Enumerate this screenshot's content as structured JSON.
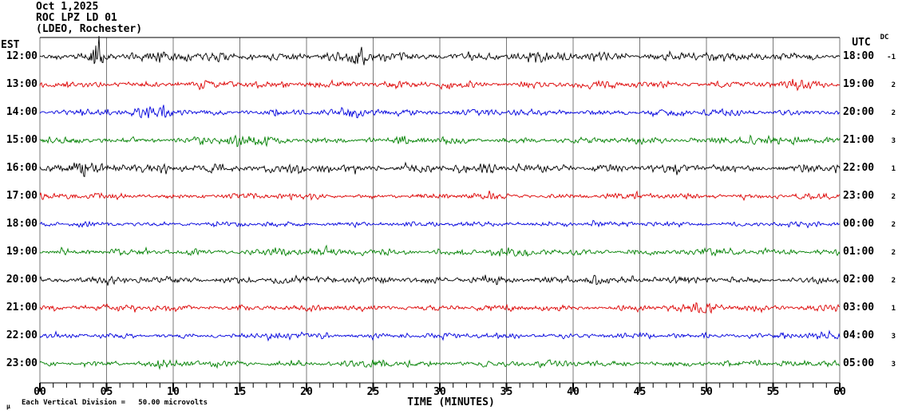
{
  "header": {
    "date": "Oct 1,2025",
    "station": "ROC LPZ LD 01",
    "location": "(LDEO, Rochester)"
  },
  "left_axis": {
    "label": "EST"
  },
  "right_axis": {
    "label": "UTC",
    "dc_label": "DC"
  },
  "x_axis": {
    "label": "TIME (MINUTES)"
  },
  "footer": {
    "mu": "µ",
    "scale_note": "Each Vertical Division =   50.00 microvolts"
  },
  "chart_data": {
    "type": "line",
    "subtype": "helicorder-seismogram",
    "title": "ROC LPZ LD 01 — Oct 1,2025 (LDEO, Rochester)",
    "xlabel": "TIME (MINUTES)",
    "x_range_minutes": [
      0,
      60
    ],
    "x_tick_labels": [
      "00",
      "05",
      "10",
      "15",
      "20",
      "25",
      "30",
      "35",
      "40",
      "45",
      "50",
      "55",
      "60"
    ],
    "minor_tick_every_minutes": 1,
    "major_tick_every_minutes": 5,
    "grid": "vertical gray lines every 5 minutes",
    "legend_position": "none",
    "vertical_division_microvolts": 50.0,
    "grid_color": "#787878",
    "rows": [
      {
        "est": "12:00",
        "utc": "18:00",
        "dc": "-1",
        "color": "#000000",
        "base_amplitude": 6.5,
        "seed": 11,
        "bursts": [
          {
            "minute": 4.3,
            "amplitude": 16,
            "width": 0.55
          },
          {
            "minute": 24.2,
            "amplitude": 9,
            "width": 0.45
          }
        ]
      },
      {
        "est": "13:00",
        "utc": "19:00",
        "dc": "2",
        "color": "#dd0000",
        "base_amplitude": 5.0,
        "seed": 22,
        "bursts": [
          {
            "minute": 20.5,
            "amplitude": 2.5,
            "width": 1.2
          },
          {
            "minute": 57.5,
            "amplitude": 3,
            "width": 1.0
          }
        ]
      },
      {
        "est": "14:00",
        "utc": "20:00",
        "dc": "2",
        "color": "#0000dd",
        "base_amplitude": 4.6,
        "seed": 33,
        "bursts": [
          {
            "minute": 9.0,
            "amplitude": 3.5,
            "width": 2.0
          },
          {
            "minute": 24.0,
            "amplitude": 2.5,
            "width": 1.2
          }
        ]
      },
      {
        "est": "15:00",
        "utc": "21:00",
        "dc": "3",
        "color": "#008000",
        "base_amplitude": 4.6,
        "seed": 44,
        "bursts": [
          {
            "minute": 15.5,
            "amplitude": 3.5,
            "width": 1.5
          },
          {
            "minute": 27.0,
            "amplitude": 2.5,
            "width": 0.8
          },
          {
            "minute": 53.0,
            "amplitude": 3,
            "width": 2.0
          }
        ]
      },
      {
        "est": "16:00",
        "utc": "22:00",
        "dc": "1",
        "color": "#000000",
        "base_amplitude": 6.0,
        "seed": 55,
        "bursts": [
          {
            "minute": 3.0,
            "amplitude": 4.5,
            "width": 1.5
          },
          {
            "minute": 12.0,
            "amplitude": 2.5,
            "width": 1.0
          }
        ]
      },
      {
        "est": "17:00",
        "utc": "23:00",
        "dc": "2",
        "color": "#dd0000",
        "base_amplitude": 4.0,
        "seed": 66,
        "bursts": [
          {
            "minute": 33.0,
            "amplitude": 2,
            "width": 1.0
          }
        ]
      },
      {
        "est": "18:00",
        "utc": "00:00",
        "dc": "2",
        "color": "#0000dd",
        "base_amplitude": 3.6,
        "seed": 77,
        "bursts": []
      },
      {
        "est": "19:00",
        "utc": "01:00",
        "dc": "2",
        "color": "#008000",
        "base_amplitude": 4.6,
        "seed": 88,
        "bursts": [
          {
            "minute": 18.0,
            "amplitude": 3.5,
            "width": 1.2
          },
          {
            "minute": 35.0,
            "amplitude": 2.5,
            "width": 1.0
          }
        ]
      },
      {
        "est": "20:00",
        "utc": "02:00",
        "dc": "2",
        "color": "#000000",
        "base_amplitude": 5.0,
        "seed": 99,
        "bursts": [
          {
            "minute": 41.5,
            "amplitude": 6,
            "width": 0.6
          },
          {
            "minute": 26.0,
            "amplitude": 2,
            "width": 1.0
          }
        ]
      },
      {
        "est": "21:00",
        "utc": "03:00",
        "dc": "1",
        "color": "#dd0000",
        "base_amplitude": 4.4,
        "seed": 110,
        "bursts": [
          {
            "minute": 50.0,
            "amplitude": 2.5,
            "width": 1.5
          }
        ]
      },
      {
        "est": "22:00",
        "utc": "04:00",
        "dc": "3",
        "color": "#0000dd",
        "base_amplitude": 3.9,
        "seed": 121,
        "bursts": [
          {
            "minute": 56.0,
            "amplitude": 3,
            "width": 0.8
          },
          {
            "minute": 18.0,
            "amplitude": 2,
            "width": 1.0
          }
        ]
      },
      {
        "est": "23:00",
        "utc": "05:00",
        "dc": "3",
        "color": "#008000",
        "base_amplitude": 4.5,
        "seed": 132,
        "bursts": [
          {
            "minute": 25.5,
            "amplitude": 3,
            "width": 0.8
          },
          {
            "minute": 59.0,
            "amplitude": 2.5,
            "width": 0.7
          }
        ]
      }
    ]
  }
}
